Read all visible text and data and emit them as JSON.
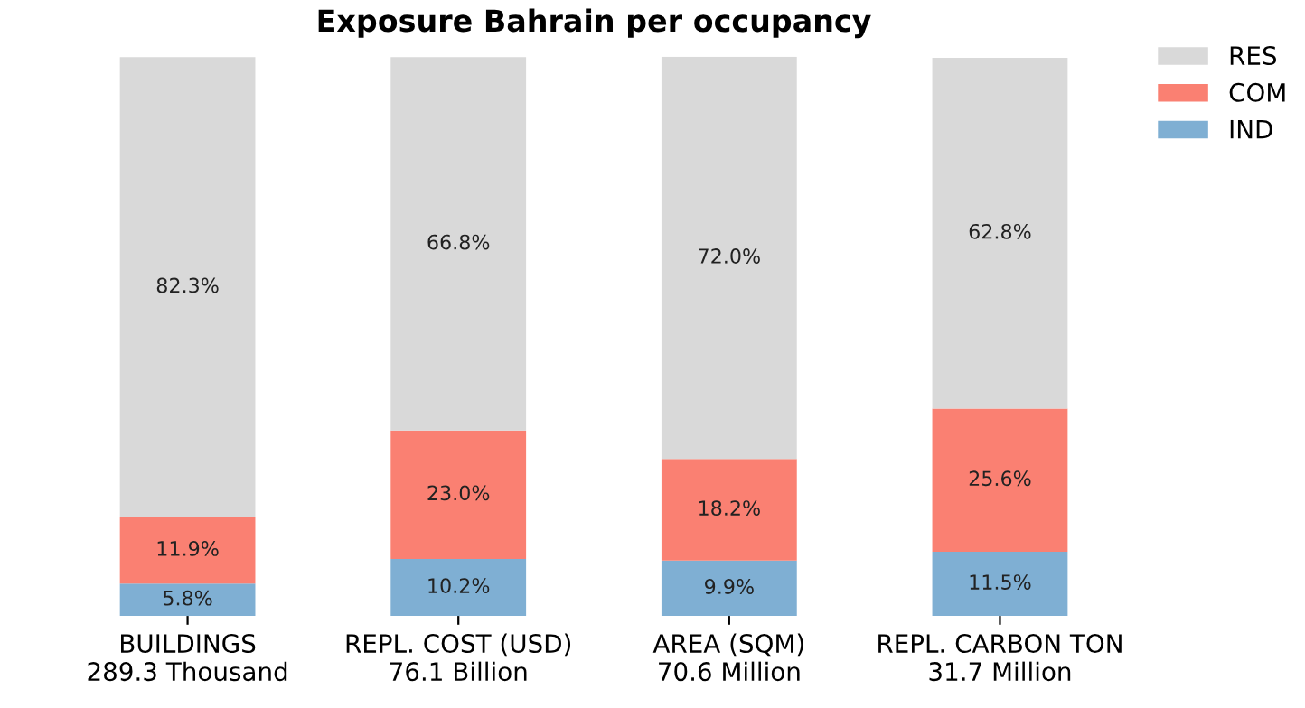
{
  "chart_data": {
    "type": "bar",
    "title": "Exposure Bahrain per occupancy",
    "stacked": true,
    "legend": "top right",
    "categories": [
      "BUILDINGS\n289.3 Thousand",
      "REPL. COST (USD)\n76.1 Billion",
      "AREA (SQM)\n70.6 Million",
      "REPL. CARBON TON\n31.7 Million"
    ],
    "series": [
      {
        "name": "IND",
        "color": "#7fafd3",
        "values": [
          5.8,
          10.2,
          9.9,
          11.5
        ],
        "value_labels": [
          "5.8%",
          "10.2%",
          "9.9%",
          "11.5%"
        ]
      },
      {
        "name": "COM",
        "color": "#fa8072",
        "values": [
          11.9,
          23.0,
          18.2,
          25.6
        ],
        "value_labels": [
          "11.9%",
          "23.0%",
          "18.2%",
          "25.6%"
        ]
      },
      {
        "name": "RES",
        "color": "#d9d9d9",
        "values": [
          82.3,
          66.8,
          72.0,
          62.8
        ],
        "value_labels": [
          "82.3%",
          "66.8%",
          "72.0%",
          "62.8%"
        ]
      }
    ]
  }
}
